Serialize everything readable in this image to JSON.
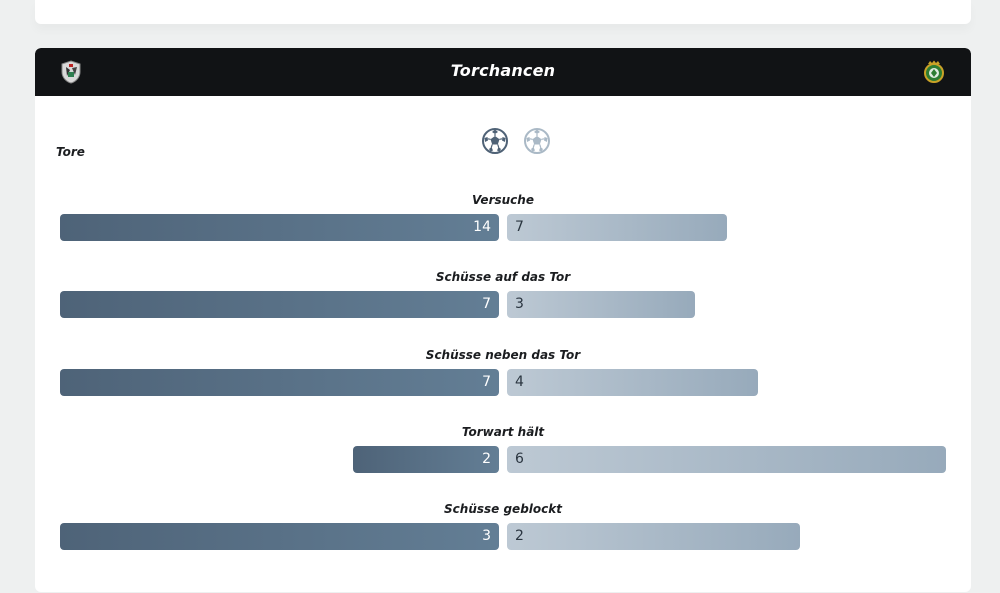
{
  "header": {
    "title": "Torchancen",
    "home_logo_icon": "club-crest-icon",
    "away_logo_icon": "club-crest-icon"
  },
  "goals": {
    "label": "Tore",
    "home_icon": "soccer-ball-icon",
    "away_icon": "soccer-ball-icon"
  },
  "colors": {
    "home_bar": "#56697f",
    "away_bar": "#a9b8c6",
    "header_bg": "#111315"
  },
  "stats": [
    {
      "label": "Versuche",
      "home": 14,
      "away": 7
    },
    {
      "label": "Schüsse auf das Tor",
      "home": 7,
      "away": 3
    },
    {
      "label": "Schüsse neben das Tor",
      "home": 7,
      "away": 4
    },
    {
      "label": "Torwart hält",
      "home": 2,
      "away": 6
    },
    {
      "label": "Schüsse geblockt",
      "home": 3,
      "away": 2
    }
  ]
}
